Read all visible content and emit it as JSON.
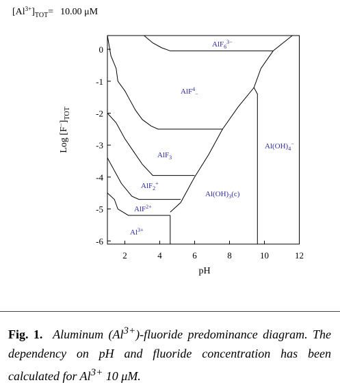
{
  "header": {
    "label": "[Al",
    "sup": "3+",
    "close": "]",
    "sub": "TOT",
    "eq": "=",
    "value": "10.00 μM"
  },
  "chart_data": {
    "type": "line",
    "x_label": "pH",
    "y_label": {
      "text": "Log [F",
      "sup": "−",
      "close": "]",
      "sub": "TOT"
    },
    "xlim": [
      1,
      12
    ],
    "ylim": [
      -6.1,
      0.43
    ],
    "xticks": [
      2,
      4,
      6,
      8,
      10,
      12
    ],
    "yticks": [
      0,
      -1,
      -2,
      -3,
      -4,
      -5,
      -6
    ],
    "color": "#000000",
    "series": [
      {
        "x": [
          3.1,
          3.6,
          4.1,
          4.6,
          10.5,
          11.6
        ],
        "values": [
          0.43,
          0.2,
          0.05,
          -0.05,
          -0.05,
          0.43
        ]
      },
      {
        "x": [
          1,
          1.2,
          1.5,
          1.6,
          2.0,
          2.3,
          2.6,
          3.0,
          3.5,
          3.9,
          7.6
        ],
        "values": [
          0.43,
          -0.2,
          -0.6,
          -1.0,
          -1.3,
          -1.6,
          -1.9,
          -2.2,
          -2.4,
          -2.5,
          -2.5
        ]
      },
      {
        "x": [
          10.5,
          9.8,
          9.4,
          8.5,
          7.6,
          6.8,
          6.0,
          5.5,
          5.2,
          4.6
        ],
        "values": [
          -0.05,
          -0.6,
          -1.2,
          -1.8,
          -2.5,
          -3.3,
          -4.0,
          -4.5,
          -4.8,
          -5.1
        ]
      },
      {
        "x": [
          9.4,
          9.6,
          9.6
        ],
        "values": [
          -1.2,
          -1.4,
          -6.1
        ]
      },
      {
        "x": [
          1,
          1.5,
          2.0,
          2.5,
          3.0,
          3.6,
          6.0
        ],
        "values": [
          -2.0,
          -2.3,
          -2.8,
          -3.2,
          -3.6,
          -3.95,
          -3.95
        ]
      },
      {
        "x": [
          1,
          1.4,
          1.8,
          2.4,
          2.8,
          5.2
        ],
        "values": [
          -3.4,
          -3.8,
          -4.2,
          -4.6,
          -4.7,
          -4.7
        ]
      },
      {
        "x": [
          1,
          1.4,
          1.6,
          2.2,
          4.6
        ],
        "values": [
          -4.5,
          -4.7,
          -5.0,
          -5.2,
          -5.2
        ]
      },
      {
        "x": [
          4.6,
          4.6
        ],
        "values": [
          -5.2,
          -6.1
        ]
      }
    ],
    "regions": [
      {
        "name": "AlF",
        "sub": "6",
        "sup": "3−"
      },
      {
        "name": "AlF",
        "sup": "4",
        "sub": "−"
      },
      {
        "name": "AlF",
        "sub": "3"
      },
      {
        "name": "AlF",
        "sub": "2",
        "sup": "+"
      },
      {
        "name": "AlF",
        "sup": "2+"
      },
      {
        "name": "Al(OH)",
        "sub": "3",
        "tail": "(c)"
      },
      {
        "name": "Al(OH)",
        "sub": "4",
        "sup": "−"
      },
      {
        "name": "Al",
        "sup": "3+"
      }
    ]
  },
  "caption": {
    "label": "Fig. 1.",
    "parts": [
      "Aluminum (Al",
      "3+",
      ")-fluoride predominance diagram. The dependency on pH and fluoride concentration has been calculated for Al",
      "3+",
      " 10 μM."
    ]
  }
}
